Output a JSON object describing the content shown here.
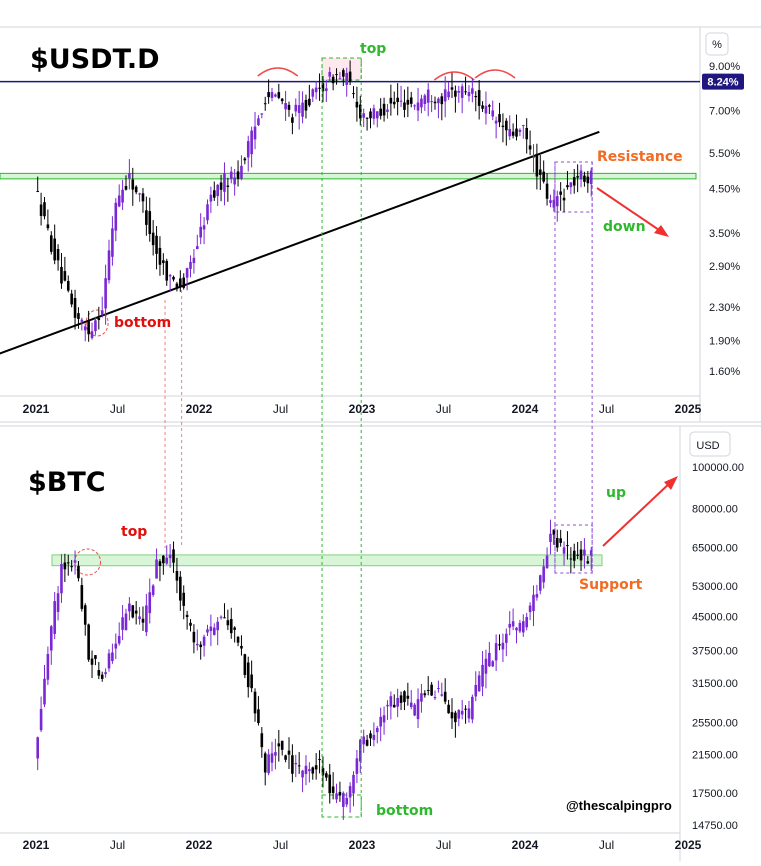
{
  "chart_data": [
    {
      "type": "candlestick",
      "title": "$USDT.D",
      "unit": "%",
      "scale": "log",
      "ylim": [
        1.4,
        10.5
      ],
      "price_ticks": [
        "9.00%",
        "7.00%",
        "5.50%",
        "4.50%",
        "3.50%",
        "2.90%",
        "2.30%",
        "1.90%",
        "1.60%"
      ],
      "current_value": "8.24%",
      "x_ticks": [
        "2021",
        "Jul",
        "2022",
        "Jul",
        "2023",
        "Jul",
        "2024",
        "Jul",
        "2025"
      ],
      "bold_x_ticks": [
        "2021",
        "2022",
        "2023",
        "2024",
        "2025"
      ],
      "x": [
        "2021-01",
        "2021-02",
        "2021-03",
        "2021-04",
        "2021-05",
        "2021-06",
        "2021-07",
        "2021-08",
        "2021-09",
        "2021-10",
        "2021-11",
        "2021-12",
        "2022-01",
        "2022-02",
        "2022-03",
        "2022-04",
        "2022-05",
        "2022-06",
        "2022-07",
        "2022-08",
        "2022-09",
        "2022-10",
        "2022-11",
        "2022-12",
        "2023-01",
        "2023-02",
        "2023-03",
        "2023-04",
        "2023-05",
        "2023-06",
        "2023-07",
        "2023-08",
        "2023-09",
        "2023-10",
        "2023-11",
        "2023-12",
        "2024-01",
        "2024-02",
        "2024-03",
        "2024-04",
        "2024-05"
      ],
      "values": [
        4.6,
        3.5,
        2.7,
        2.2,
        2.0,
        2.3,
        4.2,
        4.8,
        4.1,
        3.1,
        2.7,
        2.6,
        3.3,
        4.3,
        4.7,
        4.9,
        6.0,
        7.6,
        7.5,
        6.8,
        7.3,
        7.9,
        8.5,
        8.4,
        6.9,
        6.8,
        7.2,
        7.3,
        7.3,
        7.7,
        7.5,
        7.8,
        7.9,
        7.2,
        6.6,
        6.1,
        6.2,
        5.0,
        4.1,
        4.4,
        4.8
      ],
      "trendline": {
        "from": [
          "2020-10",
          1.75
        ],
        "to": [
          "2024-05",
          6.2
        ]
      },
      "resistance_zone": [
        4.75,
        4.9
      ],
      "current_level": 8.24,
      "annotations": [
        "top",
        "bottom",
        "Resistance",
        "down"
      ]
    },
    {
      "type": "candlestick",
      "title": "$BTC",
      "unit": "USD",
      "scale": "log",
      "ylim": [
        14000,
        110000
      ],
      "price_ticks": [
        "100000.00",
        "80000.00",
        "65000.00",
        "53000.00",
        "45000.00",
        "37500.00",
        "31500.00",
        "25500.00",
        "21500.00",
        "17500.00",
        "14750.00"
      ],
      "x_ticks": [
        "2021",
        "Jul",
        "2022",
        "Jul",
        "2023",
        "Jul",
        "2024",
        "Jul",
        "2025"
      ],
      "bold_x_ticks": [
        "2021",
        "2022",
        "2023",
        "2024",
        "2025"
      ],
      "x": [
        "2021-01",
        "2021-02",
        "2021-03",
        "2021-04",
        "2021-05",
        "2021-06",
        "2021-07",
        "2021-08",
        "2021-09",
        "2021-10",
        "2021-11",
        "2021-12",
        "2022-01",
        "2022-02",
        "2022-03",
        "2022-04",
        "2022-05",
        "2022-06",
        "2022-07",
        "2022-08",
        "2022-09",
        "2022-10",
        "2022-11",
        "2022-12",
        "2023-01",
        "2023-02",
        "2023-03",
        "2023-04",
        "2023-05",
        "2023-06",
        "2023-07",
        "2023-08",
        "2023-09",
        "2023-10",
        "2023-11",
        "2023-12",
        "2024-01",
        "2024-02",
        "2024-03",
        "2024-04",
        "2024-05"
      ],
      "values": [
        21000,
        38000,
        58000,
        60000,
        37000,
        33000,
        40000,
        47000,
        43000,
        60000,
        62000,
        47000,
        38000,
        42000,
        45000,
        39000,
        30000,
        20000,
        23000,
        20000,
        19500,
        20500,
        17000,
        16800,
        23000,
        23500,
        28000,
        29000,
        27000,
        30500,
        29500,
        26000,
        27000,
        34000,
        37500,
        42000,
        43000,
        51000,
        70000,
        64000,
        62000
      ],
      "support_zone": [
        59000,
        62500
      ],
      "annotations": [
        "top",
        "bottom",
        "up",
        "Support"
      ],
      "watermark": "@thescalpingpro"
    }
  ]
}
